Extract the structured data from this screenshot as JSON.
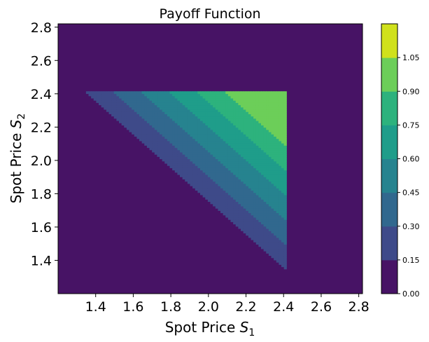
{
  "chart_data": {
    "type": "filled-contour",
    "title": "Payoff Function",
    "xlabel": {
      "base": "Spot Price ",
      "var": "S",
      "sub": "1"
    },
    "ylabel": {
      "base": "Spot Price ",
      "var": "S",
      "sub": "2"
    },
    "xlim": [
      1.2,
      2.82
    ],
    "ylim": [
      1.2,
      2.82
    ],
    "xticks": [
      1.4,
      1.6,
      1.8,
      2.0,
      2.2,
      2.4,
      2.6,
      2.8
    ],
    "xtick_labels": [
      "1.4",
      "1.6",
      "1.8",
      "2.0",
      "2.2",
      "2.4",
      "2.6",
      "2.8"
    ],
    "yticks": [
      1.4,
      1.6,
      1.8,
      2.0,
      2.2,
      2.4,
      2.6,
      2.8
    ],
    "ytick_labels": [
      "1.4",
      "1.6",
      "1.8",
      "2.0",
      "2.2",
      "2.4",
      "2.6",
      "2.8"
    ],
    "colorbar": {
      "levels": [
        0.0,
        0.15,
        0.3,
        0.45,
        0.6,
        0.75,
        0.9,
        1.05
      ],
      "labels": [
        "0.00",
        "0.15",
        "0.30",
        "0.45",
        "0.60",
        "0.75",
        "0.90",
        "1.05"
      ],
      "colors": [
        "#471365",
        "#3e4a89",
        "#31688e",
        "#26838f",
        "#1f9d8a",
        "#2db27d",
        "#6cce59",
        "#d0e11c"
      ]
    },
    "payoff": {
      "description_visible": false,
      "barrier": 2.42,
      "strike_sum": 3.6,
      "cap": 1.2
    },
    "grid": false,
    "colormap": "viridis"
  }
}
